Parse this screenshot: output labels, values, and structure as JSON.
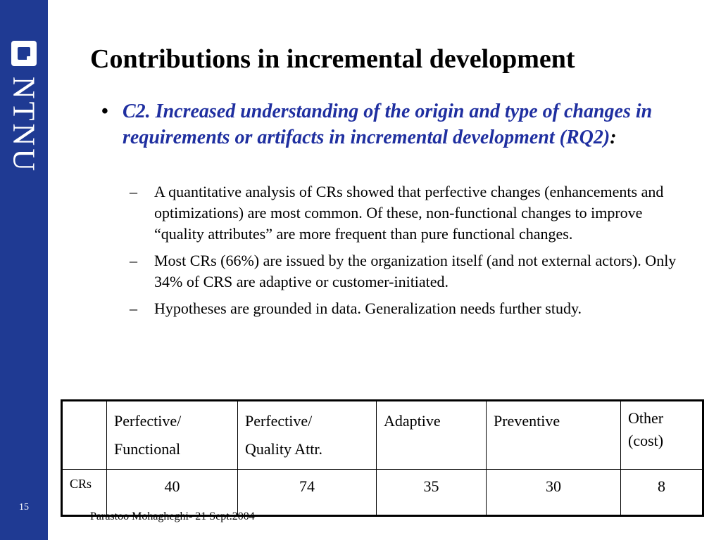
{
  "sidebar": {
    "logo_text": "NTNU",
    "slide_number": "15",
    "colors": {
      "background": "#1f3a93",
      "logo": "#ffffff"
    }
  },
  "title": "Contributions in incremental development",
  "bullet": {
    "text": "C2. Increased understanding of the origin and type of changes in requirements or artifacts in incremental development (RQ2)",
    "suffix": ":",
    "color": "#1f2fa0"
  },
  "sub_bullets": [
    "A quantitative analysis of CRs showed that perfective changes (enhancements and optimizations) are most common. Of these, non-functional changes to improve “quality attributes” are more frequent than pure functional changes.",
    "Most CRs (66%) are issued by the organization itself (and not external actors). Only 34% of CRS are adaptive or customer-initiated.",
    "Hypotheses are grounded in data. Generalization needs further study."
  ],
  "table": {
    "headers": [
      {
        "line1": "Perfective/",
        "line2": "Functional"
      },
      {
        "line1": "Perfective/",
        "line2": "Quality Attr."
      },
      {
        "line1": "Adaptive",
        "line2": ""
      },
      {
        "line1": "Preventive",
        "line2": ""
      },
      {
        "line1": "Other",
        "line2": "(cost)"
      }
    ],
    "row_label": "CRs",
    "values": [
      "40",
      "74",
      "35",
      "30",
      "8"
    ]
  },
  "footer": "Parastoo Mohagheghi- 21 Sept.2004"
}
